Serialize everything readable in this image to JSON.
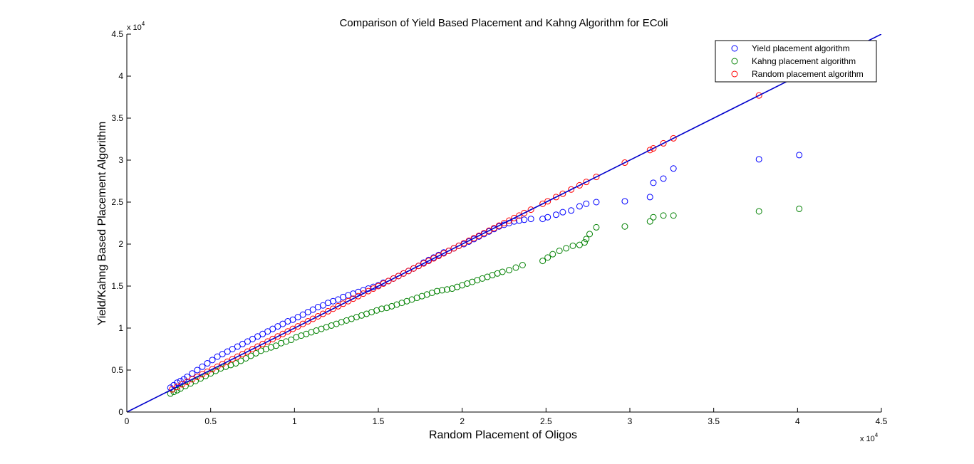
{
  "chart_data": {
    "type": "scatter",
    "title": "Comparison of Yield Based Placement and Kahng Algorithm for EColi",
    "xlabel": "Random Placement of Oligos",
    "ylabel": "Yield/Kahng Based Placement Algorithm",
    "x_exponent_label": "x 10",
    "x_exponent_power": "4",
    "y_exponent_label": "x 10",
    "y_exponent_power": "4",
    "xlim": [
      0,
      45000
    ],
    "ylim": [
      0,
      45000
    ],
    "x_ticks": [
      0,
      5000,
      10000,
      15000,
      20000,
      25000,
      30000,
      35000,
      40000,
      45000
    ],
    "y_ticks": [
      0,
      5000,
      10000,
      15000,
      20000,
      25000,
      30000,
      35000,
      40000,
      45000
    ],
    "x_tick_labels": [
      "0",
      "0.5",
      "1",
      "1.5",
      "2",
      "2.5",
      "3",
      "3.5",
      "4",
      "4.5"
    ],
    "y_tick_labels": [
      "0",
      "0.5",
      "1",
      "1.5",
      "2",
      "2.5",
      "3",
      "3.5",
      "4",
      "4.5"
    ],
    "grid": false,
    "legend_position": "top-right",
    "colors": {
      "yield": "#0000ff",
      "kahng": "#008000",
      "random": "#ff0000",
      "fit_line": "#0000cc"
    },
    "reference_line": {
      "name": "y = x",
      "x": [
        0,
        45000
      ],
      "y": [
        0,
        45000
      ]
    },
    "series": [
      {
        "name": "Yield placement algorithm",
        "color": "#0000ff",
        "x": [
          2600,
          2800,
          3000,
          3200,
          3400,
          3600,
          3900,
          4200,
          4500,
          4800,
          5100,
          5400,
          5700,
          6000,
          6300,
          6600,
          6900,
          7200,
          7500,
          7800,
          8100,
          8400,
          8700,
          9000,
          9300,
          9600,
          9900,
          10200,
          10500,
          10800,
          11100,
          11400,
          11700,
          12000,
          12300,
          12600,
          12900,
          13200,
          13500,
          13800,
          14100,
          14400,
          14700,
          15000,
          15300,
          15600,
          15900,
          16200,
          16500,
          16800,
          17100,
          17400,
          17700,
          18000,
          18300,
          18600,
          18900,
          19200,
          19500,
          19800,
          20100,
          20400,
          20700,
          21000,
          21300,
          21600,
          21900,
          22200,
          22500,
          22800,
          23100,
          23400,
          23700,
          24100,
          24800,
          25100,
          25600,
          26000,
          26500,
          27000,
          27400,
          28000,
          29700,
          31200,
          31400,
          32000,
          32600,
          37700,
          40100
        ],
        "y": [
          2900,
          3200,
          3500,
          3700,
          3900,
          4200,
          4600,
          5000,
          5400,
          5800,
          6200,
          6600,
          6900,
          7200,
          7500,
          7800,
          8100,
          8400,
          8700,
          9000,
          9300,
          9600,
          9900,
          10200,
          10500,
          10800,
          11000,
          11300,
          11600,
          11900,
          12200,
          12500,
          12700,
          13000,
          13200,
          13400,
          13700,
          13900,
          14100,
          14300,
          14500,
          14700,
          14900,
          15100,
          15400,
          15600,
          15900,
          16200,
          16500,
          16800,
          17100,
          17400,
          17800,
          18100,
          18400,
          18700,
          19000,
          19200,
          19500,
          19800,
          20000,
          20300,
          20600,
          20900,
          21200,
          21500,
          21800,
          22100,
          22300,
          22500,
          22700,
          22800,
          22900,
          23000,
          23000,
          23200,
          23500,
          23800,
          24000,
          24500,
          24800,
          25000,
          25100,
          25600,
          27300,
          27800,
          29000,
          30100,
          30600
        ]
      },
      {
        "name": "Kahng placement algorithm",
        "color": "#008000",
        "x": [
          2600,
          2800,
          3000,
          3200,
          3500,
          3800,
          4100,
          4400,
          4700,
          5000,
          5300,
          5600,
          5900,
          6200,
          6500,
          6800,
          7100,
          7400,
          7700,
          8000,
          8300,
          8600,
          8900,
          9200,
          9500,
          9800,
          10100,
          10400,
          10700,
          11000,
          11300,
          11600,
          11900,
          12200,
          12500,
          12800,
          13100,
          13400,
          13700,
          14000,
          14300,
          14600,
          14900,
          15200,
          15500,
          15800,
          16100,
          16400,
          16700,
          17000,
          17300,
          17600,
          17900,
          18200,
          18500,
          18800,
          19100,
          19400,
          19700,
          20000,
          20300,
          20600,
          20900,
          21200,
          21500,
          21800,
          22100,
          22400,
          22800,
          23200,
          23600,
          24800,
          25100,
          25400,
          25800,
          26200,
          26600,
          27000,
          27300,
          27400,
          27600,
          28000,
          29700,
          31200,
          31400,
          32000,
          32600,
          37700,
          40100
        ],
        "y": [
          2200,
          2400,
          2600,
          2800,
          3100,
          3400,
          3700,
          4000,
          4300,
          4600,
          4900,
          5200,
          5400,
          5600,
          5800,
          6100,
          6400,
          6700,
          7000,
          7300,
          7500,
          7700,
          7900,
          8200,
          8400,
          8600,
          8900,
          9100,
          9300,
          9500,
          9700,
          9900,
          10100,
          10300,
          10500,
          10700,
          10900,
          11100,
          11300,
          11500,
          11700,
          11900,
          12100,
          12300,
          12400,
          12600,
          12800,
          13000,
          13200,
          13400,
          13600,
          13800,
          14000,
          14200,
          14400,
          14500,
          14600,
          14700,
          14900,
          15100,
          15300,
          15500,
          15700,
          15900,
          16100,
          16300,
          16500,
          16700,
          16900,
          17200,
          17500,
          18000,
          18400,
          18800,
          19200,
          19500,
          19800,
          19900,
          20200,
          20600,
          21200,
          22000,
          22100,
          22700,
          23200,
          23400,
          23400,
          23900,
          24200
        ]
      },
      {
        "name": "Random placement algorithm",
        "color": "#ff0000",
        "x": [
          2700,
          3000,
          3300,
          3600,
          3900,
          4200,
          4500,
          4800,
          5100,
          5400,
          5700,
          6000,
          6300,
          6600,
          6900,
          7200,
          7500,
          7800,
          8100,
          8400,
          8700,
          9000,
          9300,
          9600,
          9900,
          10200,
          10500,
          10800,
          11100,
          11400,
          11700,
          12000,
          12300,
          12600,
          12900,
          13200,
          13500,
          13800,
          14100,
          14400,
          14700,
          15000,
          15300,
          15600,
          15900,
          16200,
          16500,
          16800,
          17100,
          17400,
          17700,
          18000,
          18300,
          18600,
          18900,
          19200,
          19500,
          19800,
          20100,
          20400,
          20700,
          21000,
          21300,
          21600,
          21900,
          22200,
          22500,
          22800,
          23100,
          23400,
          23700,
          24100,
          24800,
          25100,
          25600,
          26000,
          26500,
          27000,
          27400,
          28000,
          29700,
          31200,
          31400,
          32000,
          32600,
          37700,
          40100
        ],
        "y": [
          2700,
          3000,
          3300,
          3600,
          3900,
          4200,
          4500,
          4800,
          5100,
          5400,
          5700,
          6000,
          6300,
          6600,
          6900,
          7200,
          7500,
          7800,
          8100,
          8400,
          8700,
          9000,
          9300,
          9600,
          9900,
          10200,
          10500,
          10800,
          11100,
          11400,
          11700,
          12000,
          12300,
          12600,
          12900,
          13200,
          13500,
          13800,
          14100,
          14400,
          14700,
          15000,
          15300,
          15600,
          15900,
          16200,
          16500,
          16800,
          17100,
          17400,
          17700,
          18000,
          18300,
          18600,
          18900,
          19200,
          19500,
          19800,
          20100,
          20400,
          20700,
          21000,
          21300,
          21600,
          21900,
          22200,
          22500,
          22800,
          23100,
          23400,
          23700,
          24100,
          24800,
          25100,
          25600,
          26000,
          26500,
          27000,
          27400,
          28000,
          29700,
          31200,
          31400,
          32000,
          32600,
          37700,
          40100
        ]
      }
    ]
  }
}
